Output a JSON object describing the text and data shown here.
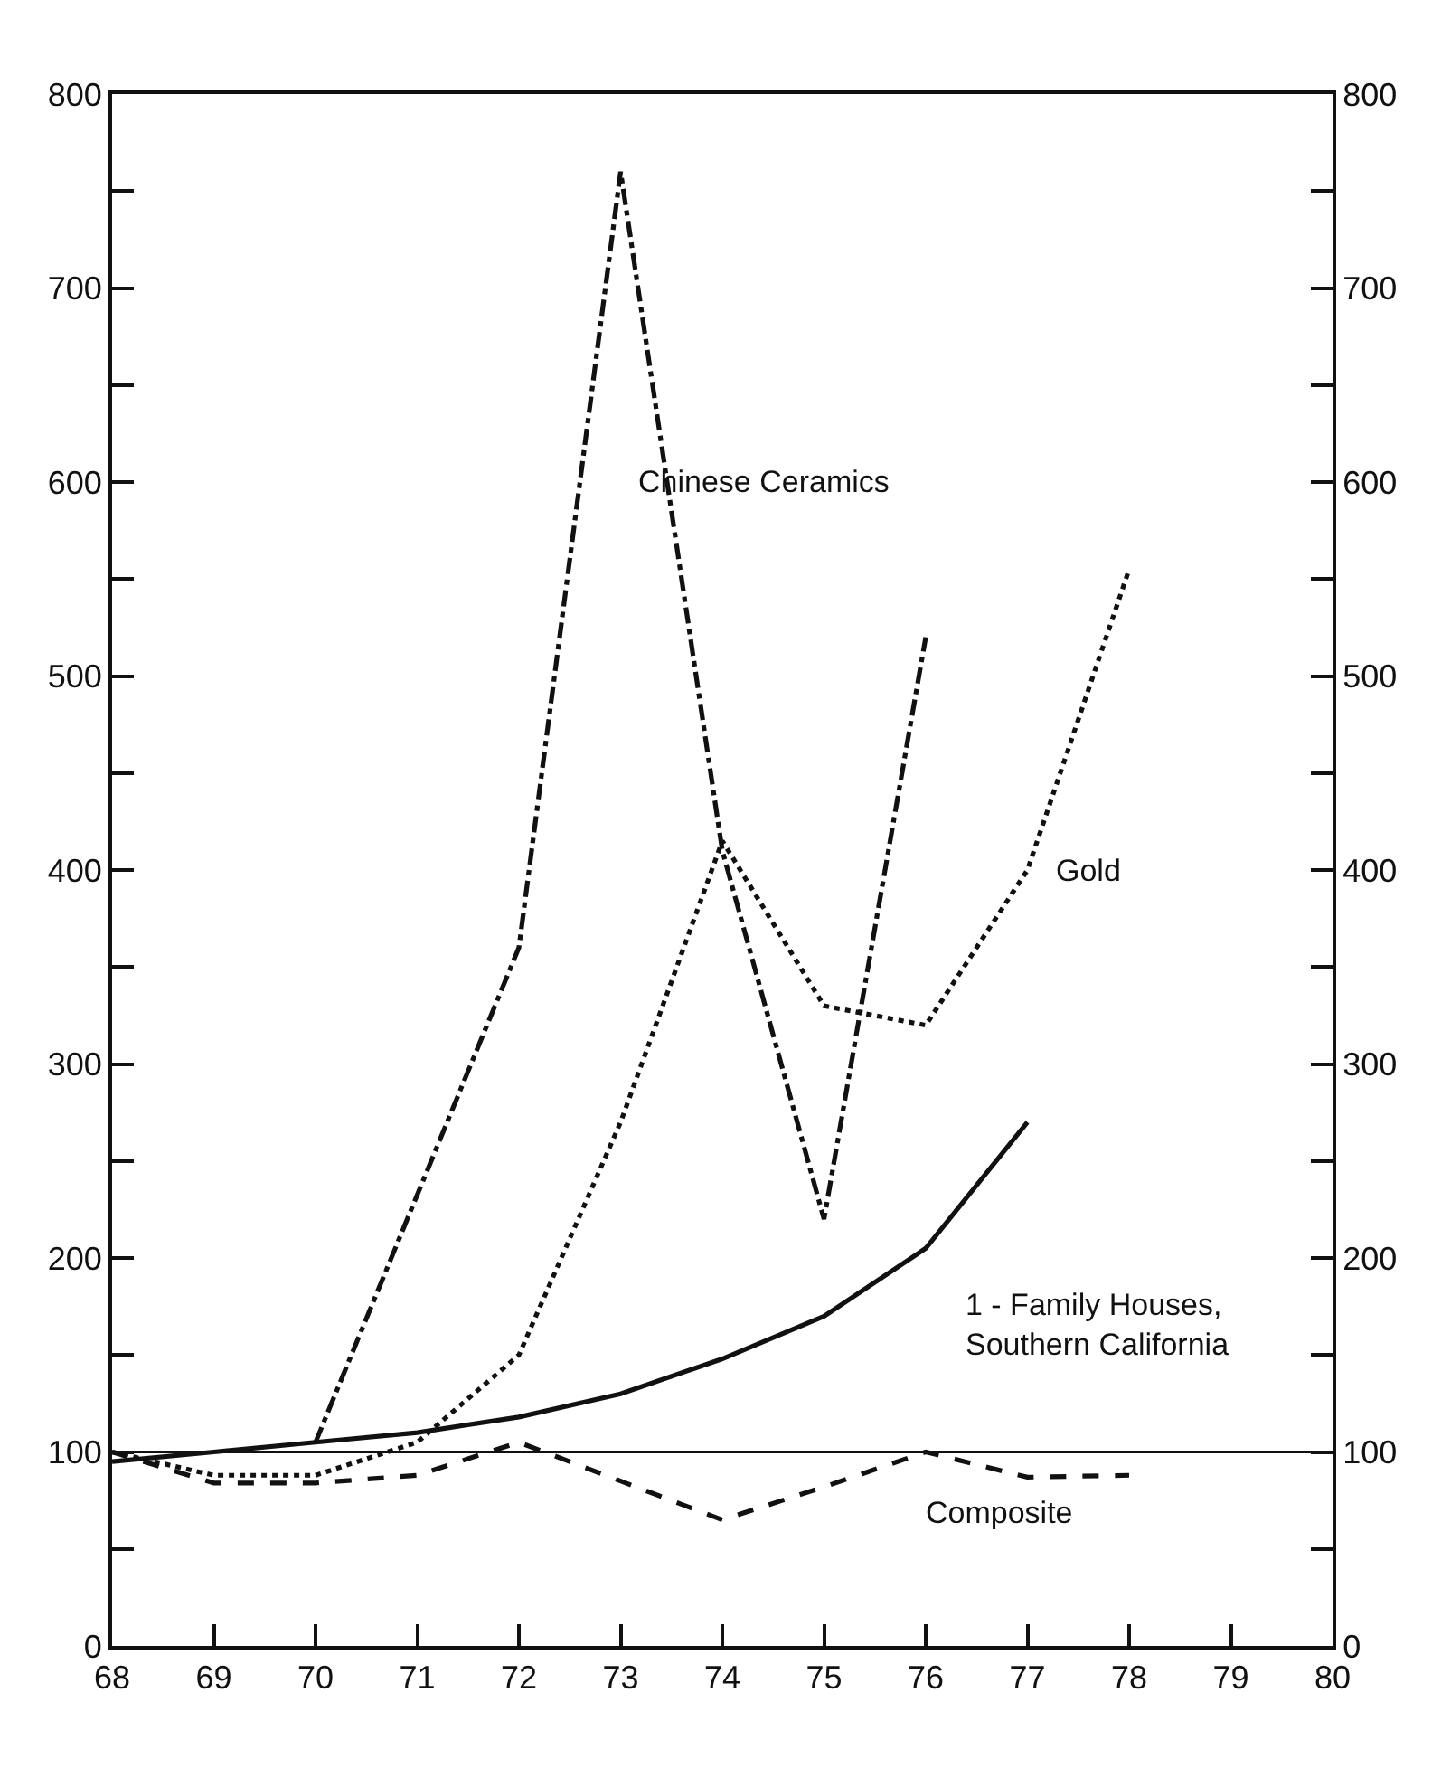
{
  "chart_data": {
    "type": "line",
    "x": [
      68,
      69,
      70,
      71,
      72,
      73,
      74,
      75,
      76,
      77,
      78
    ],
    "series": [
      {
        "name": "Chinese Ceramics",
        "color": "#111111",
        "line_style": "dashdot",
        "x": [
          70,
          72,
          73,
          74,
          75,
          76
        ],
        "values": [
          105,
          360,
          760,
          410,
          220,
          520
        ]
      },
      {
        "name": "Gold",
        "color": "#111111",
        "line_style": "dotted",
        "values": [
          100,
          88,
          88,
          105,
          150,
          270,
          415,
          330,
          320,
          400,
          555
        ]
      },
      {
        "name": "1 - Family Houses,\nSouthern California",
        "color": "#111111",
        "line_style": "solid",
        "x": [
          68,
          69,
          70,
          71,
          72,
          73,
          74,
          75,
          76,
          77
        ],
        "values": [
          95,
          100,
          105,
          110,
          118,
          130,
          148,
          170,
          205,
          270
        ]
      },
      {
        "name": "Composite",
        "color": "#111111",
        "line_style": "dashed",
        "values": [
          100,
          84,
          84,
          88,
          105,
          85,
          65,
          82,
          100,
          87,
          88
        ]
      }
    ],
    "xlim": [
      68,
      80
    ],
    "xticks": [
      68,
      69,
      70,
      71,
      72,
      73,
      74,
      75,
      76,
      77,
      78,
      79,
      80
    ],
    "ylim": [
      0,
      800
    ],
    "yticks": [
      0,
      {
        "value": 50,
        "label": null
      },
      100,
      {
        "value": 150,
        "label": null
      },
      200,
      {
        "value": 250,
        "label": null
      },
      300,
      {
        "value": 350,
        "label": null
      },
      400,
      {
        "value": 450,
        "label": null
      },
      500,
      {
        "value": 550,
        "label": null
      },
      600,
      {
        "value": 650,
        "label": null
      },
      700,
      {
        "value": 750,
        "label": null
      },
      800
    ],
    "y2lim": [
      0,
      800
    ],
    "y2ticks": [
      0,
      {
        "value": 50,
        "label": null
      },
      100,
      {
        "value": 150,
        "label": null
      },
      200,
      {
        "value": 250,
        "label": null
      },
      300,
      {
        "value": 350,
        "label": null
      },
      400,
      {
        "value": 450,
        "label": null
      },
      500,
      {
        "value": 550,
        "label": null
      },
      600,
      {
        "value": 650,
        "label": null
      },
      700,
      {
        "value": 750,
        "label": null
      },
      800
    ],
    "ref_lines": [
      {
        "axis": "y",
        "value": 100,
        "color": "#111111"
      }
    ],
    "grid": false,
    "legend": false,
    "marker": "none"
  }
}
